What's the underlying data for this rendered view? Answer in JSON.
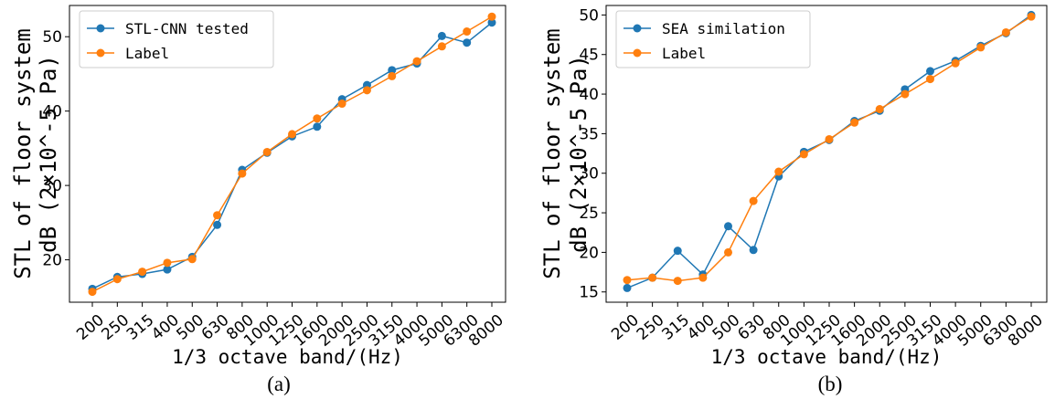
{
  "chart_data": [
    {
      "type": "line",
      "panel_label": "(a)",
      "xlabel": "1/3 octave band/(Hz)",
      "ylabel": [
        "STL of floor system",
        "dB (2×10^-5 Pa)"
      ],
      "categories": [
        "200",
        "250",
        "315",
        "400",
        "500",
        "630",
        "800",
        "1000",
        "1250",
        "1600",
        "2000",
        "2500",
        "3150",
        "4000",
        "5000",
        "6300",
        "8000"
      ],
      "ylim": [
        14.3,
        54.2
      ],
      "yticks": [
        20,
        30,
        40,
        50
      ],
      "legend_position": "top-left",
      "series": [
        {
          "name": "STL-CNN tested",
          "color": "#1f77b4",
          "values": [
            16.1,
            17.7,
            18.1,
            18.7,
            20.4,
            24.7,
            32.1,
            34.4,
            36.6,
            37.9,
            41.6,
            43.5,
            45.5,
            46.4,
            50.1,
            49.2,
            51.9
          ]
        },
        {
          "name": "Label",
          "color": "#ff7f0e",
          "values": [
            15.7,
            17.4,
            18.4,
            19.6,
            20.1,
            26.0,
            31.6,
            34.5,
            36.9,
            39.0,
            41.0,
            42.8,
            44.7,
            46.7,
            48.7,
            50.7,
            52.7
          ]
        }
      ]
    },
    {
      "type": "line",
      "panel_label": "(b)",
      "xlabel": "1/3 octave band/(Hz)",
      "ylabel": [
        "STL of floor system",
        "dB (2×10^-5 Pa)"
      ],
      "categories": [
        "200",
        "250",
        "315",
        "400",
        "500",
        "630",
        "800",
        "1000",
        "1250",
        "1600",
        "2000",
        "2500",
        "3150",
        "4000",
        "5000",
        "6300",
        "8000"
      ],
      "ylim": [
        13.7,
        51.2
      ],
      "yticks": [
        15,
        20,
        25,
        30,
        35,
        40,
        45,
        50
      ],
      "legend_position": "top-left",
      "series": [
        {
          "name": "SEA similation",
          "color": "#1f77b4",
          "values": [
            15.5,
            16.8,
            20.2,
            17.2,
            23.3,
            20.3,
            29.6,
            32.7,
            34.2,
            36.6,
            37.9,
            40.6,
            42.9,
            44.2,
            46.1,
            47.7,
            50.0
          ]
        },
        {
          "name": "Label",
          "color": "#ff7f0e",
          "values": [
            16.5,
            16.8,
            16.4,
            16.8,
            20.0,
            26.5,
            30.2,
            32.4,
            34.3,
            36.4,
            38.1,
            40.0,
            41.9,
            43.9,
            45.9,
            47.8,
            49.8
          ]
        }
      ]
    }
  ]
}
